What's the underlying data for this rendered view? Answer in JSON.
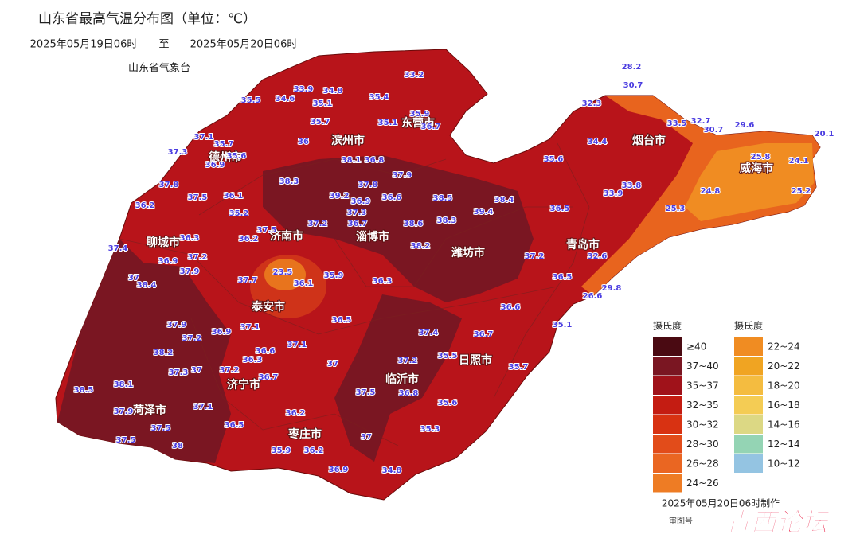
{
  "header": {
    "title": "山东省最高气温分布图（单位：℃）",
    "period_start": "2025年05月19日06时",
    "period_sep": "至",
    "period_end": "2025年05月20日06时",
    "issuer": "山东省气象台"
  },
  "cities": [
    "滨州市",
    "东营市",
    "德州市",
    "聊城市",
    "济南市",
    "淄博市",
    "潍坊市",
    "烟台市",
    "威海市",
    "青岛市",
    "泰安市",
    "日照市",
    "临沂市",
    "济宁市",
    "菏泽市",
    "枣庄市"
  ],
  "stations": [
    28.2,
    30.7,
    32.3,
    33.5,
    32.7,
    30.7,
    29.6,
    20.1,
    25.8,
    24.1,
    25.2,
    24.8,
    25.3,
    34.4,
    35.6,
    33.8,
    33.9,
    36.5,
    39.4,
    38.4,
    38.5,
    38.3,
    38.6,
    38.2,
    37.2,
    32.6,
    36.5,
    29.8,
    26.6,
    36.6,
    35.1,
    36.7,
    37.4,
    35.5,
    35.7,
    37.2,
    36.8,
    35.6,
    35.3,
    37,
    37.5,
    37,
    34.8,
    36.9,
    36.2,
    36.5,
    35.9,
    36.2,
    37.1,
    36.6,
    36.3,
    36.7,
    37.2,
    37,
    37.3,
    36.9,
    37.1,
    36.5,
    35.9,
    36.3,
    23.5,
    36.1,
    37.7,
    37.9,
    37.2,
    36.3,
    36.9,
    37,
    38.4,
    37.4,
    36.2,
    37.8,
    37.5,
    36.1,
    35.2,
    36.2,
    37.5,
    37.2,
    36.7,
    37.3,
    36.9,
    39.2,
    38.3,
    38.1,
    36.8,
    37.9,
    37.8,
    36.6,
    36,
    36.9,
    35.6,
    35.7,
    37.1,
    37.3,
    35.5,
    34.6,
    33.9,
    34.8,
    35.1,
    35.7,
    35.4,
    33.2,
    35.9,
    36.7,
    35.1,
    37.9,
    37.2,
    38.2,
    38.5,
    38.1,
    37.9,
    37.1,
    37.5,
    37.5,
    38
  ],
  "legend": {
    "left": {
      "title": "摄氏度",
      "items": [
        {
          "label": "≥40",
          "color": "#4a0a12"
        },
        {
          "label": "37~40",
          "color": "#7a1622"
        },
        {
          "label": "35~37",
          "color": "#a0121a"
        },
        {
          "label": "32~35",
          "color": "#c41c12"
        },
        {
          "label": "30~32",
          "color": "#d83212"
        },
        {
          "label": "28~30",
          "color": "#e24c1a"
        },
        {
          "label": "26~28",
          "color": "#ea6622"
        },
        {
          "label": "24~26",
          "color": "#ee7c24"
        }
      ]
    },
    "right": {
      "title": "摄氏度",
      "items": [
        {
          "label": "22~24",
          "color": "#f08c22"
        },
        {
          "label": "20~22",
          "color": "#f0a422"
        },
        {
          "label": "18~20",
          "color": "#f4bc40"
        },
        {
          "label": "16~18",
          "color": "#f4cc54"
        },
        {
          "label": "14~16",
          "color": "#dcd884"
        },
        {
          "label": "12~14",
          "color": "#94d4b4"
        },
        {
          "label": "10~12",
          "color": "#94c4e2"
        }
      ]
    }
  },
  "footer": {
    "made": "2025年05月20日06时制作",
    "review": "审图号"
  },
  "watermark": "青西论坛"
}
